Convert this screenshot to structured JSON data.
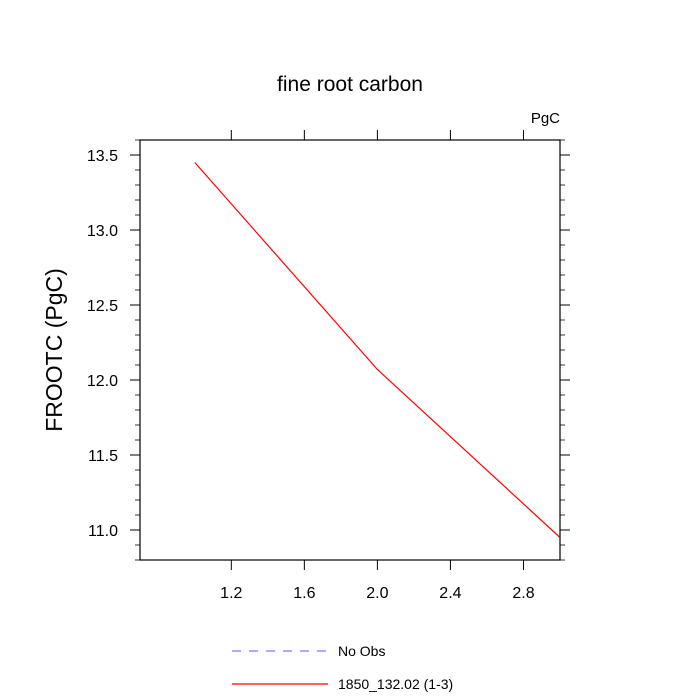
{
  "chart_data": {
    "type": "line",
    "title": "fine root carbon",
    "units_label": "PgC",
    "ylabel": "FROOTC  (PgC)",
    "xlabel": "",
    "xlim": [
      0.7,
      3.0
    ],
    "ylim": [
      10.8,
      13.6
    ],
    "x_ticks": [
      "1.2",
      "1.6",
      "2.0",
      "2.4",
      "2.8"
    ],
    "y_ticks": [
      "11.0",
      "11.5",
      "12.0",
      "12.5",
      "13.0",
      "13.5"
    ],
    "x_tick_values": [
      1.2,
      1.6,
      2.0,
      2.4,
      2.8
    ],
    "y_tick_values": [
      11.0,
      11.5,
      12.0,
      12.5,
      13.0,
      13.5
    ],
    "grid": false,
    "legend_position": "bottom",
    "series": [
      {
        "name": "No Obs",
        "color": "#7a7aff",
        "style": "dashed",
        "x": [],
        "y": []
      },
      {
        "name": "1850_132.02 (1-3)",
        "color": "#ff0000",
        "style": "solid",
        "x": [
          1.0,
          2.0,
          3.0
        ],
        "y": [
          13.45,
          12.07,
          10.95
        ]
      }
    ]
  }
}
